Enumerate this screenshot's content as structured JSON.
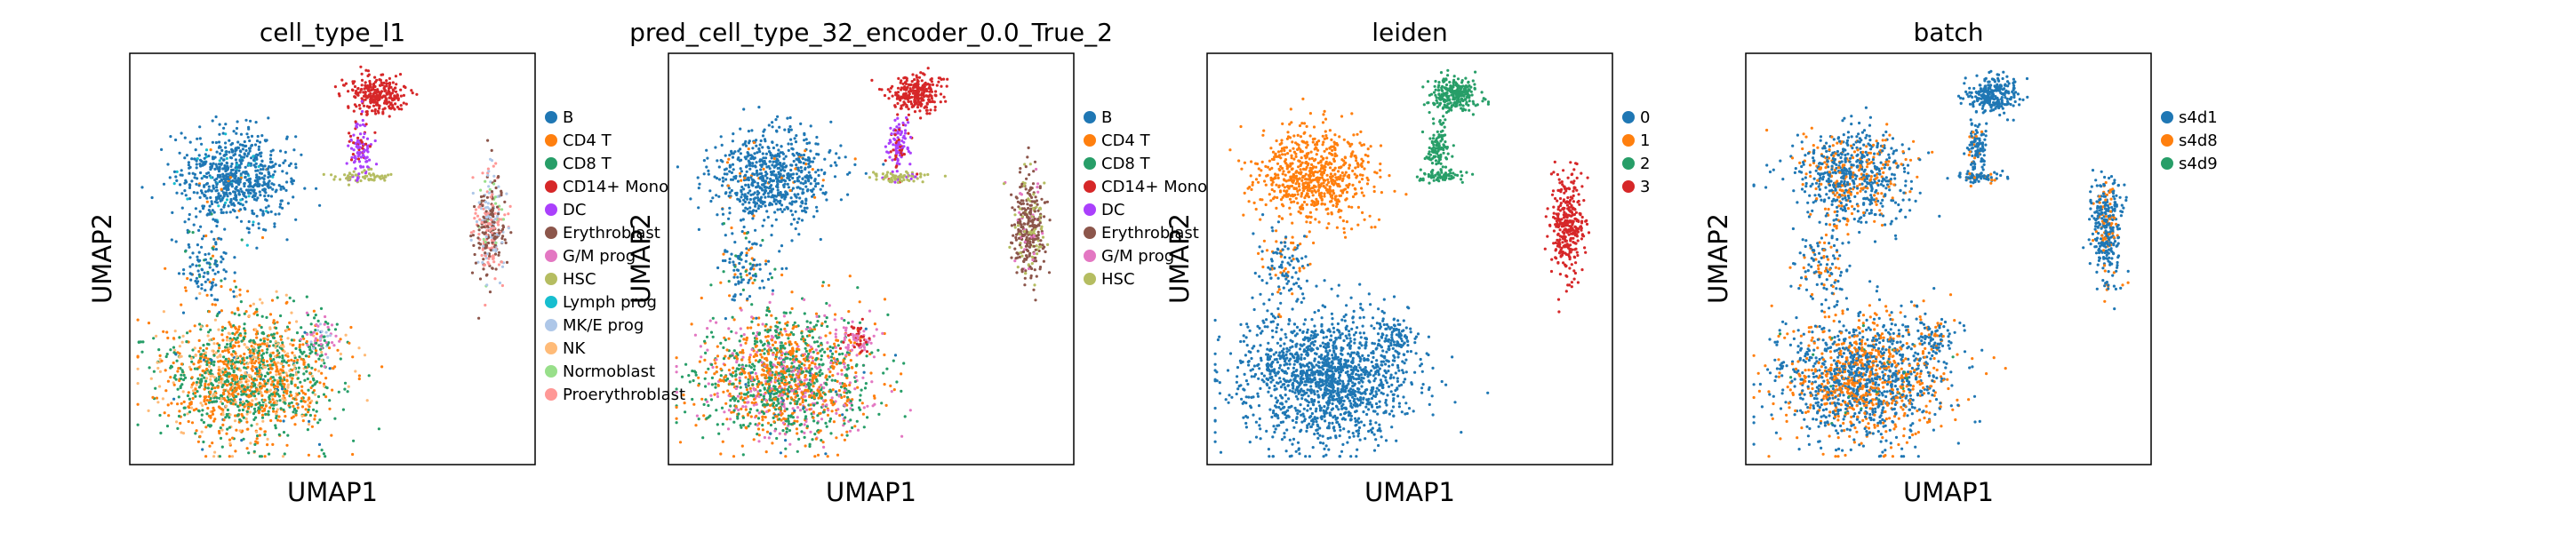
{
  "chart_data": [
    {
      "type": "scatter",
      "title": "cell_type_l1",
      "xlabel": "UMAP1",
      "ylabel": "UMAP2",
      "legend": "right",
      "grid": false,
      "series": [
        {
          "name": "B",
          "color": "#1f77b4"
        },
        {
          "name": "CD4 T",
          "color": "#ff7f0e"
        },
        {
          "name": "CD8 T",
          "color": "#279e68"
        },
        {
          "name": "CD14+ Mono",
          "color": "#d62728"
        },
        {
          "name": "DC",
          "color": "#aa40fc"
        },
        {
          "name": "Erythroblast",
          "color": "#8c564b"
        },
        {
          "name": "G/M prog",
          "color": "#e377c2"
        },
        {
          "name": "HSC",
          "color": "#b5bd61"
        },
        {
          "name": "Lymph prog",
          "color": "#17becf"
        },
        {
          "name": "MK/E prog",
          "color": "#aec7e8"
        },
        {
          "name": "NK",
          "color": "#ffbb78"
        },
        {
          "name": "Normoblast",
          "color": "#98df8a"
        },
        {
          "name": "Proerythroblast",
          "color": "#ff9896"
        }
      ]
    },
    {
      "type": "scatter",
      "title": "pred_cell_type_32_encoder_0.0_True_2",
      "xlabel": "UMAP1",
      "ylabel": "UMAP2",
      "legend": "right",
      "grid": false,
      "series": [
        {
          "name": "B",
          "color": "#1f77b4"
        },
        {
          "name": "CD4 T",
          "color": "#ff7f0e"
        },
        {
          "name": "CD8 T",
          "color": "#279e68"
        },
        {
          "name": "CD14+ Mono",
          "color": "#d62728"
        },
        {
          "name": "DC",
          "color": "#aa40fc"
        },
        {
          "name": "Erythroblast",
          "color": "#8c564b"
        },
        {
          "name": "G/M prog",
          "color": "#e377c2"
        },
        {
          "name": "HSC",
          "color": "#b5bd61"
        }
      ]
    },
    {
      "type": "scatter",
      "title": "leiden",
      "xlabel": "UMAP1",
      "ylabel": "UMAP2",
      "legend": "right",
      "grid": false,
      "series": [
        {
          "name": "0",
          "color": "#1f77b4"
        },
        {
          "name": "1",
          "color": "#ff7f0e"
        },
        {
          "name": "2",
          "color": "#279e68"
        },
        {
          "name": "3",
          "color": "#d62728"
        }
      ]
    },
    {
      "type": "scatter",
      "title": "batch",
      "xlabel": "UMAP1",
      "ylabel": "UMAP2",
      "legend": "right",
      "grid": false,
      "series": [
        {
          "name": "s4d1",
          "color": "#1f77b4"
        },
        {
          "name": "s4d8",
          "color": "#ff7f0e"
        },
        {
          "name": "s4d9",
          "color": "#279e68"
        }
      ]
    }
  ]
}
